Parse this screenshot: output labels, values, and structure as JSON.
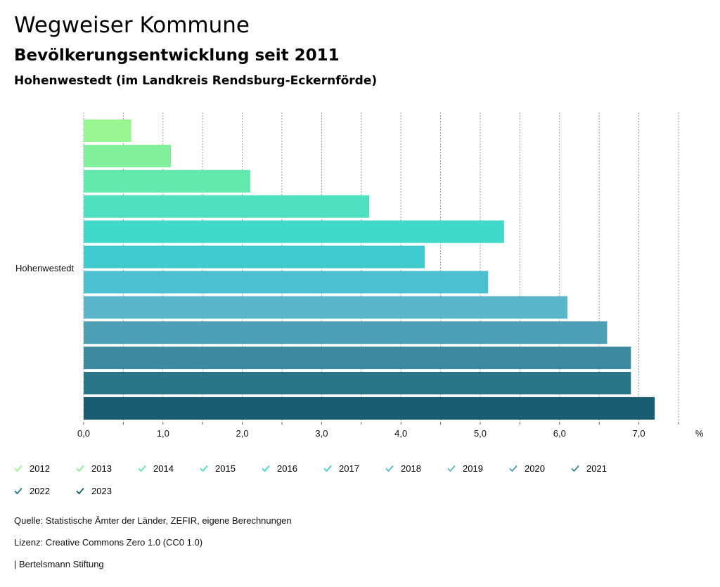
{
  "header": {
    "title": "Wegweiser Kommune",
    "subtitle": "Bevölkerungsentwicklung seit 2011",
    "region": "Hohenwestedt (im Landkreis Rendsburg-Eckernförde)"
  },
  "chart_data": {
    "type": "bar",
    "orientation": "horizontal",
    "category": "Hohenwestedt",
    "unit": "%",
    "xlim": [
      0,
      7.5
    ],
    "ticks": [
      "0,0",
      "1,0",
      "2,0",
      "3,0",
      "4,0",
      "5,0",
      "6,0",
      "7,0"
    ],
    "grid": true,
    "series": [
      {
        "name": "2012",
        "value": 0.6,
        "color": "#98f591"
      },
      {
        "name": "2013",
        "value": 1.1,
        "color": "#82ef9c"
      },
      {
        "name": "2014",
        "value": 2.1,
        "color": "#63e8ae"
      },
      {
        "name": "2015",
        "value": 3.6,
        "color": "#4fe0bf"
      },
      {
        "name": "2016",
        "value": 5.3,
        "color": "#40d8c9"
      },
      {
        "name": "2017",
        "value": 4.3,
        "color": "#40cccf"
      },
      {
        "name": "2018",
        "value": 5.1,
        "color": "#4dc0cf"
      },
      {
        "name": "2019",
        "value": 6.1,
        "color": "#5cb6c9"
      },
      {
        "name": "2020",
        "value": 6.6,
        "color": "#4c9fb4"
      },
      {
        "name": "2021",
        "value": 6.9,
        "color": "#3d8a9e"
      },
      {
        "name": "2022",
        "value": 6.9,
        "color": "#2a7588"
      },
      {
        "name": "2023",
        "value": 7.2,
        "color": "#175d6f"
      }
    ]
  },
  "footer": {
    "source": "Quelle: Statistische Ämter der Länder, ZEFIR, eigene Berechnungen",
    "license": "Lizenz: Creative Commons Zero 1.0 (CC0 1.0)",
    "publisher": "| Bertelsmann Stiftung"
  }
}
